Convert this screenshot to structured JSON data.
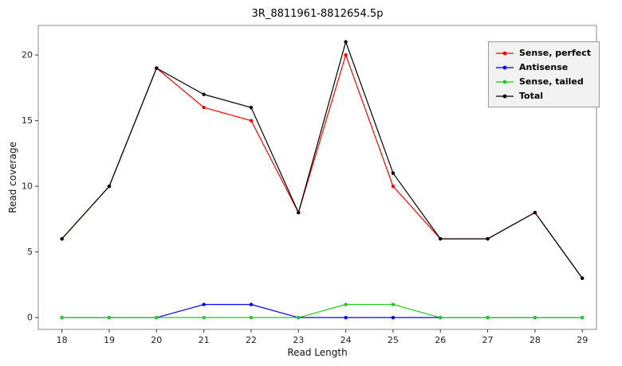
{
  "chart_data": {
    "type": "line",
    "title": "3R_8811961-8812654.5p",
    "xlabel": "Read Length",
    "ylabel": "Read coverage",
    "x": [
      18,
      19,
      20,
      21,
      22,
      23,
      24,
      25,
      26,
      27,
      28,
      29
    ],
    "series": [
      {
        "name": "Sense, perfect",
        "color": "#ff0000",
        "values": [
          6,
          10,
          19,
          16,
          15,
          8,
          20,
          10,
          6,
          6,
          8,
          3
        ]
      },
      {
        "name": "Antisense",
        "color": "#0000ff",
        "values": [
          0,
          0,
          0,
          1,
          1,
          0,
          0,
          0,
          0,
          0,
          0,
          0
        ]
      },
      {
        "name": "Sense, tailed",
        "color": "#22cc22",
        "values": [
          0,
          0,
          0,
          0,
          0,
          0,
          1,
          1,
          0,
          0,
          0,
          0
        ]
      },
      {
        "name": "Total",
        "color": "#000000",
        "values": [
          6,
          10,
          19,
          17,
          16,
          8,
          21,
          11,
          6,
          6,
          8,
          3
        ]
      }
    ],
    "x_ticks": [
      18,
      19,
      20,
      21,
      22,
      23,
      24,
      25,
      26,
      27,
      28,
      29
    ],
    "y_ticks": [
      0,
      5,
      10,
      15,
      20
    ],
    "xlim": [
      17.5,
      29.3
    ],
    "ylim": [
      -0.9,
      22.25
    ],
    "grid": false,
    "legend_position": "top-right"
  }
}
